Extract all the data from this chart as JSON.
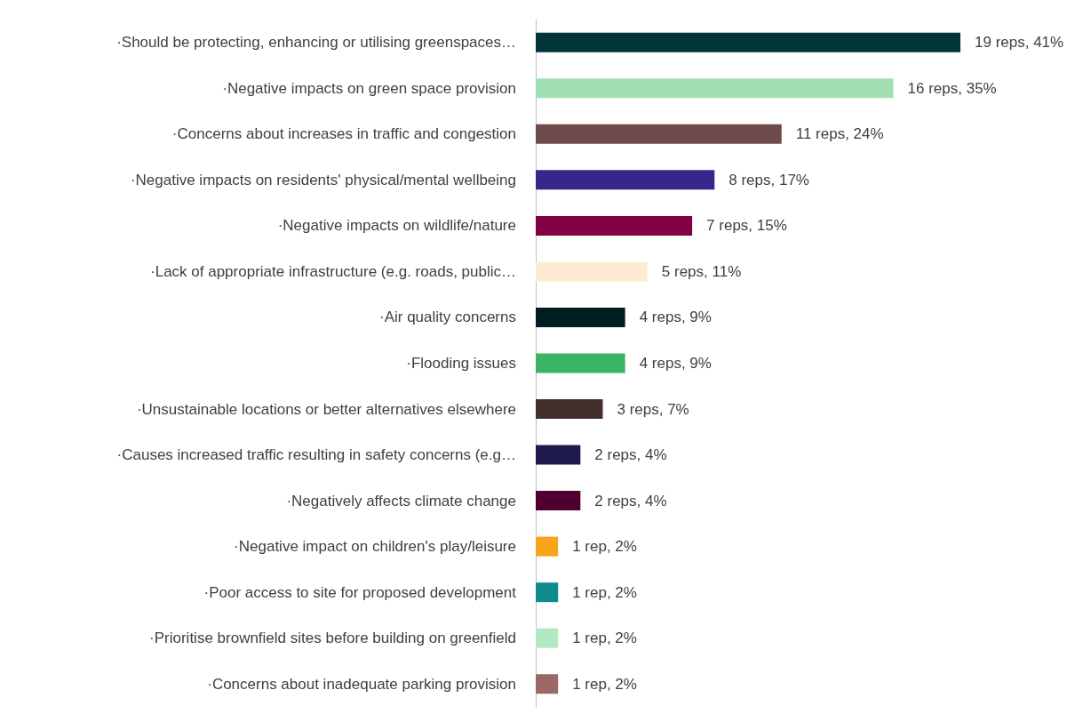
{
  "chart_data": {
    "type": "bar",
    "orientation": "horizontal",
    "tick_labels": "y",
    "categories": [
      "·Should be protecting, enhancing or utilising greenspaces…",
      "·Negative impacts on green space provision",
      "·Concerns about increases in traffic and congestion",
      "·Negative impacts on residents' physical/mental wellbeing",
      "·Negative impacts on wildlife/nature",
      "·Lack of appropriate infrastructure (e.g. roads, public…",
      "·Air quality concerns",
      "·Flooding issues",
      "·Unsustainable locations or better alternatives elsewhere",
      "·Causes increased traffic resulting in safety concerns (e.g…",
      "·Negatively affects climate change",
      "·Negative impact on children's play/leisure",
      "·Poor access to site for proposed development",
      "·Prioritise brownfield sites before building on greenfield",
      "·Concerns about inadequate parking provision"
    ],
    "values": [
      19,
      16,
      11,
      8,
      7,
      5,
      4,
      4,
      3,
      2,
      2,
      1,
      1,
      1,
      1
    ],
    "value_labels": [
      "19 reps, 41%",
      "16 reps, 35%",
      "11 reps, 24%",
      "8 reps, 17%",
      "7 reps, 15%",
      "5 reps, 11%",
      "4 reps, 9%",
      "4 reps, 9%",
      "3 reps, 7%",
      "2 reps, 4%",
      "2 reps, 4%",
      "1 rep, 2%",
      "1 rep, 2%",
      "1 rep, 2%",
      "1 rep, 2%"
    ],
    "colors": [
      "#00363a",
      "#a2dfb3",
      "#6f4c4c",
      "#35288a",
      "#820044",
      "#fdebd3",
      "#011f22",
      "#3bb364",
      "#43302e",
      "#1f1a4e",
      "#4f0030",
      "#f8a51c",
      "#0f8b8d",
      "#b2e8c2",
      "#9b6868"
    ]
  }
}
